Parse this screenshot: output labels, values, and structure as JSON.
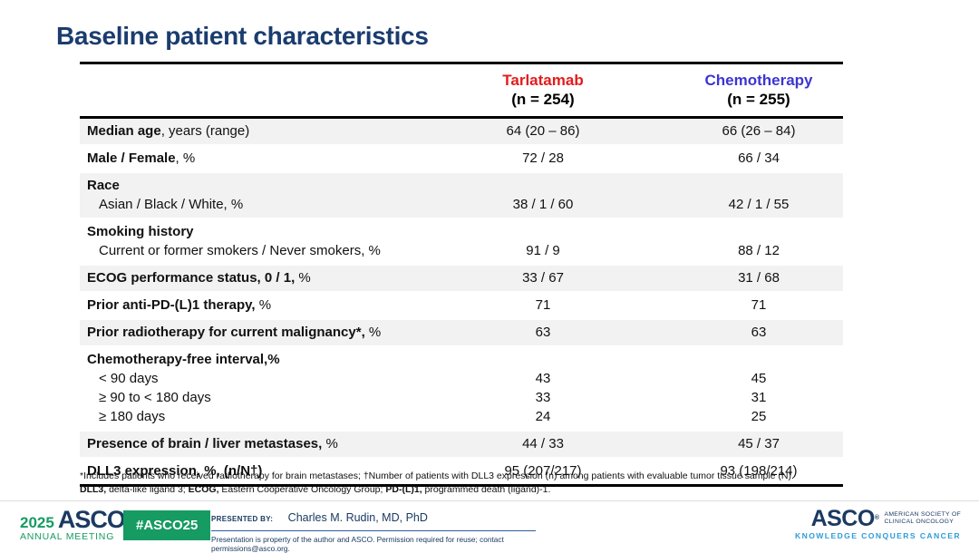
{
  "slide": {
    "title": "Baseline patient characteristics"
  },
  "table": {
    "columns": [
      {
        "drug": "Tarlatamab",
        "n": "(n = 254)"
      },
      {
        "drug": "Chemotherapy",
        "n": "(n = 255)"
      }
    ],
    "rows": [
      {
        "bold": "Median age",
        "rest": ", years (range)",
        "tar": [
          "64 (20 – 86)"
        ],
        "chemo": [
          "66 (26 – 84)"
        ]
      },
      {
        "bold": "Male / Female",
        "rest": ", %",
        "tar": [
          "72 / 28"
        ],
        "chemo": [
          "66 / 34"
        ]
      },
      {
        "bold": "Race",
        "rest": "",
        "subs": [
          "Asian / Black / White, %"
        ],
        "tar": [
          "",
          "38 / 1 / 60"
        ],
        "chemo": [
          "",
          "42 / 1 / 55"
        ]
      },
      {
        "bold": "Smoking history",
        "rest": "",
        "subs": [
          "Current or former smokers / Never smokers, %"
        ],
        "tar": [
          "",
          "91 / 9"
        ],
        "chemo": [
          "",
          "88 / 12"
        ]
      },
      {
        "bold": "ECOG performance status, 0 / 1,",
        "rest": " %",
        "tar": [
          "33 / 67"
        ],
        "chemo": [
          "31 / 68"
        ]
      },
      {
        "bold": "Prior anti-PD-(L)1 therapy,",
        "rest": " %",
        "tar": [
          "71"
        ],
        "chemo": [
          "71"
        ]
      },
      {
        "bold": "Prior radiotherapy for current malignancy*,",
        "rest": " %",
        "tar": [
          "63"
        ],
        "chemo": [
          "63"
        ]
      },
      {
        "bold": "Chemotherapy-free interval,%",
        "rest": "",
        "subs": [
          "< 90 days",
          "≥ 90 to < 180 days",
          "≥ 180 days"
        ],
        "tar": [
          "",
          "43",
          "33",
          "24"
        ],
        "chemo": [
          "",
          "45",
          "31",
          "25"
        ]
      },
      {
        "bold": "Presence of brain / liver metastases,",
        "rest": " %",
        "tar": [
          "44 / 33"
        ],
        "chemo": [
          "45 / 37"
        ]
      },
      {
        "bold": "DLL3 expression, %, (n/N†)",
        "rest": "",
        "tar": [
          "95 (207/217)"
        ],
        "chemo": [
          "93 (198/214)"
        ]
      }
    ]
  },
  "footnotes": {
    "line1": "*Includes patients who received radiotherapy for brain metastases; †Number of patients with DLL3 expression (n) among patients with evaluable tumor tissue sample (N).",
    "line2": {
      "b1": "DLL3,",
      "n1": " delta-like ligand 3; ",
      "b2": "ECOG,",
      "n2": " Eastern Cooperative Oncology Group; ",
      "b3": "PD-(L)1,",
      "n3": " programmed death (ligand)-1."
    }
  },
  "footer": {
    "meeting_year": "2025",
    "meeting_org": "ASCO",
    "meeting_reg": "®",
    "meeting_name": "ANNUAL MEETING",
    "hashtag": "#ASCO25",
    "presented_by_label": "PRESENTED BY:",
    "presenter": "Charles M. Rudin, MD, PhD",
    "permission": "Presentation is property of the author and ASCO. Permission required for reuse; contact permissions@asco.org.",
    "asco_logo": "ASCO",
    "asco_reg": "®",
    "asco_sub1": "AMERICAN SOCIETY OF",
    "asco_sub2": "CLINICAL ONCOLOGY",
    "asco_tagline": "KNOWLEDGE CONQUERS CANCER"
  },
  "colors": {
    "title_navy": "#1b3c6e",
    "tarlatamab_red": "#e21c1c",
    "chemotherapy_blue": "#3c35d2",
    "row_shade": "#f2f2f2",
    "asco_green": "#169b62",
    "asco_navy": "#1b3a63",
    "tagline_blue": "#2f9cd6"
  }
}
